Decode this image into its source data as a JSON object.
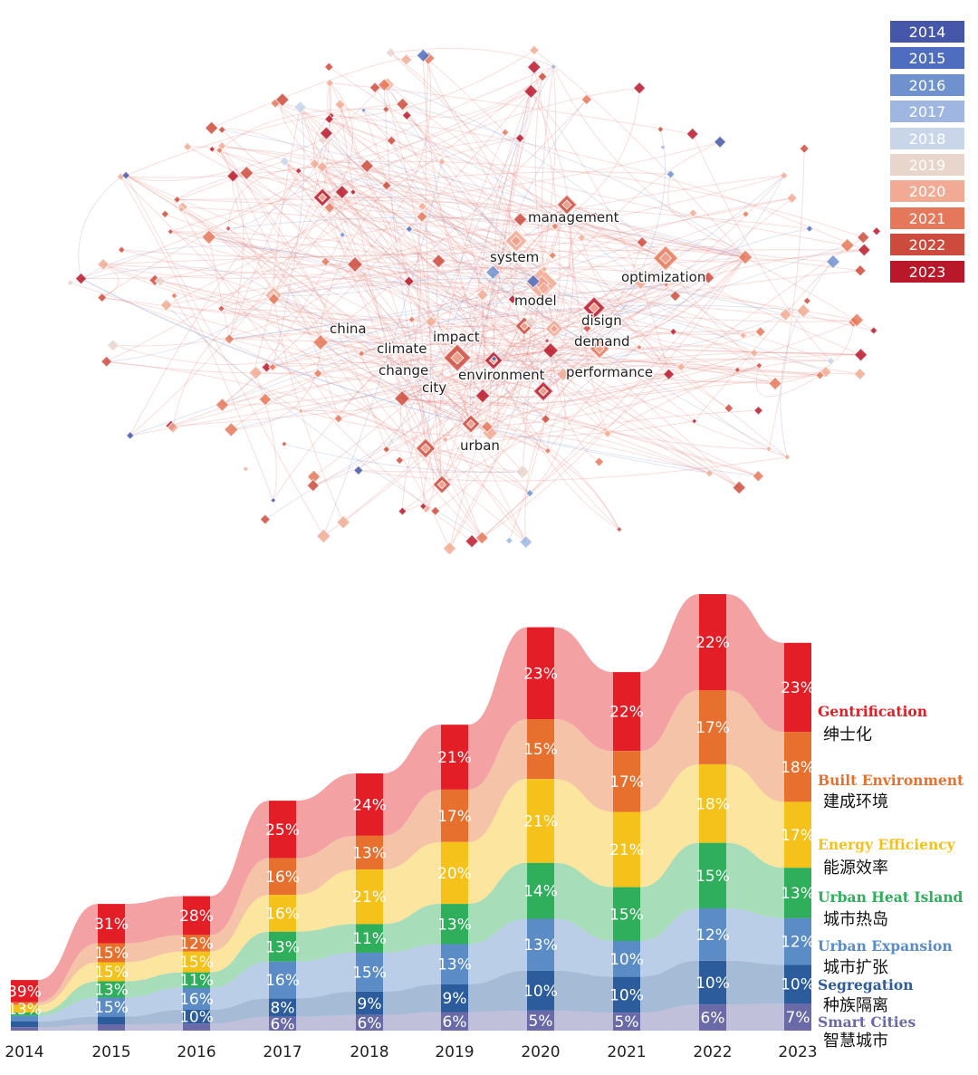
{
  "year_legend": [
    {
      "label": "2014",
      "color": "#4656a8"
    },
    {
      "label": "2015",
      "color": "#4f6dbf"
    },
    {
      "label": "2016",
      "color": "#6f92cf"
    },
    {
      "label": "2017",
      "color": "#9fb7e0"
    },
    {
      "label": "2018",
      "color": "#c9d6ea"
    },
    {
      "label": "2019",
      "color": "#e8d5cc"
    },
    {
      "label": "2020",
      "color": "#f1ab94"
    },
    {
      "label": "2021",
      "color": "#e5785b"
    },
    {
      "label": "2022",
      "color": "#cd4b3d"
    },
    {
      "label": "2023",
      "color": "#b8182a"
    }
  ],
  "network_keywords": [
    "management",
    "system",
    "optimization",
    "model",
    "china",
    "disign",
    "impact",
    "demand",
    "climate",
    "change",
    "environment",
    "performance",
    "city",
    "urban"
  ],
  "chart_data": {
    "type": "area",
    "categories": [
      "2014",
      "2015",
      "2016",
      "2017",
      "2018",
      "2019",
      "2020",
      "2021",
      "2022",
      "2023"
    ],
    "series": [
      {
        "name": "Gentrification",
        "name_zh": "绅士化",
        "color": "#e41e26",
        "values": [
          39,
          31,
          28,
          25,
          24,
          21,
          23,
          22,
          22,
          23
        ]
      },
      {
        "name": "Built Environment",
        "name_zh": "建成环境",
        "color": "#e8702e",
        "values": [
          5,
          15,
          12,
          16,
          13,
          17,
          15,
          17,
          17,
          18
        ]
      },
      {
        "name": "Energy Efficiency",
        "name_zh": "能源效率",
        "color": "#f5c21b",
        "values": [
          13,
          15,
          15,
          16,
          21,
          20,
          21,
          21,
          18,
          17
        ]
      },
      {
        "name": "Urban Heat Island",
        "name_zh": "城市热岛",
        "color": "#2fae5b",
        "values": [
          6,
          13,
          11,
          13,
          11,
          13,
          14,
          15,
          15,
          13
        ]
      },
      {
        "name": "Urban Expansion",
        "name_zh": "城市扩张",
        "color": "#5b8cc6",
        "values": [
          10,
          15,
          16,
          16,
          15,
          13,
          13,
          10,
          12,
          12
        ]
      },
      {
        "name": "Segregation",
        "name_zh": "种族隔离",
        "color": "#2c5c9c",
        "values": [
          10,
          6,
          10,
          8,
          9,
          9,
          10,
          10,
          10,
          10
        ]
      },
      {
        "name": "Smart Cities",
        "name_zh": "智慧城市",
        "color": "#6b6aa8",
        "values": [
          6,
          5,
          5,
          6,
          6,
          6,
          5,
          5,
          6,
          7
        ]
      }
    ],
    "labels": [
      [
        "39%",
        "",
        "13%",
        "",
        "",
        "",
        ""
      ],
      [
        "31%",
        "15%",
        "15%",
        "13%",
        "15%",
        "",
        ""
      ],
      [
        "28%",
        "12%",
        "15%",
        "11%",
        "16%",
        "10%",
        ""
      ],
      [
        "25%",
        "16%",
        "16%",
        "13%",
        "16%",
        "8%",
        "6%"
      ],
      [
        "24%",
        "13%",
        "21%",
        "11%",
        "15%",
        "9%",
        "6%"
      ],
      [
        "21%",
        "17%",
        "20%",
        "13%",
        "13%",
        "9%",
        "6%"
      ],
      [
        "23%",
        "15%",
        "21%",
        "14%",
        "13%",
        "10%",
        "5%"
      ],
      [
        "22%",
        "17%",
        "21%",
        "15%",
        "10%",
        "10%",
        "5%"
      ],
      [
        "22%",
        "17%",
        "18%",
        "15%",
        "12%",
        "10%",
        "6%"
      ],
      [
        "23%",
        "18%",
        "17%",
        "13%",
        "12%",
        "10%",
        "7%"
      ]
    ],
    "column_totals": [
      26,
      65,
      69,
      118,
      132,
      157,
      207,
      184,
      224,
      199
    ]
  }
}
